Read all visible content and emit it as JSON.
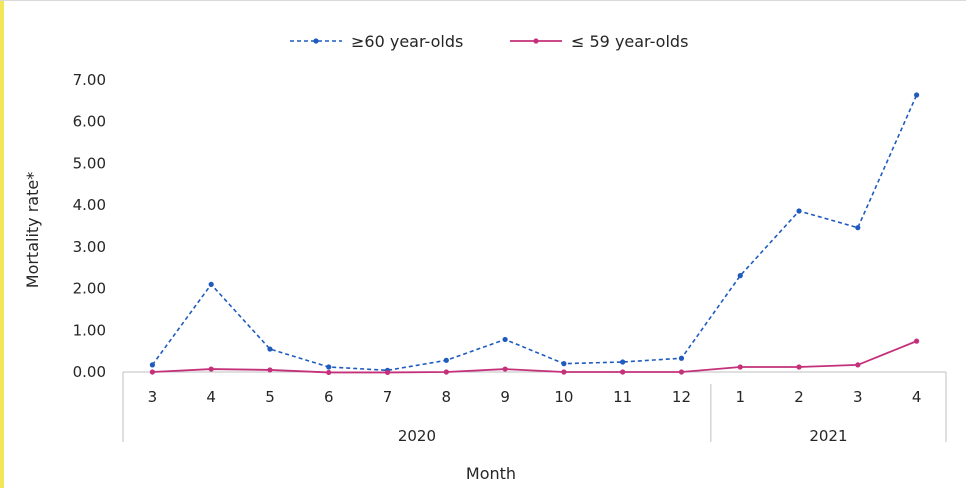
{
  "colors": {
    "accent_bar": "#f2e65a",
    "series_60plus": "#1f5bbf",
    "series_59under": "#c4317a",
    "axis": "#bfbfbf",
    "text": "#262626"
  },
  "chart_data": {
    "type": "line",
    "title": "",
    "xlabel": "Month",
    "ylabel": "Mortality rate*",
    "ylim": [
      0,
      7
    ],
    "yticks": [
      "0.00",
      "1.00",
      "2.00",
      "3.00",
      "4.00",
      "5.00",
      "6.00",
      "7.00"
    ],
    "ytick_values": [
      0,
      1,
      2,
      3,
      4,
      5,
      6,
      7
    ],
    "grid": false,
    "legend_position": "top-center",
    "categories": [
      "3",
      "4",
      "5",
      "6",
      "7",
      "8",
      "9",
      "10",
      "11",
      "12",
      "1",
      "2",
      "3",
      "4"
    ],
    "groups": [
      {
        "label": "2020",
        "count": 10
      },
      {
        "label": "2021",
        "count": 4
      }
    ],
    "series": [
      {
        "name": "≥60 year-olds",
        "style": "dashed",
        "values": [
          0.17,
          2.1,
          0.55,
          0.12,
          0.04,
          0.28,
          0.78,
          0.2,
          0.24,
          0.33,
          2.31,
          3.86,
          3.46,
          6.64
        ]
      },
      {
        "name": "≤ 59 year-olds",
        "style": "solid",
        "values": [
          0.0,
          0.07,
          0.05,
          -0.01,
          -0.01,
          0.0,
          0.07,
          0.0,
          0.0,
          0.0,
          0.12,
          0.12,
          0.17,
          0.74
        ]
      }
    ]
  }
}
